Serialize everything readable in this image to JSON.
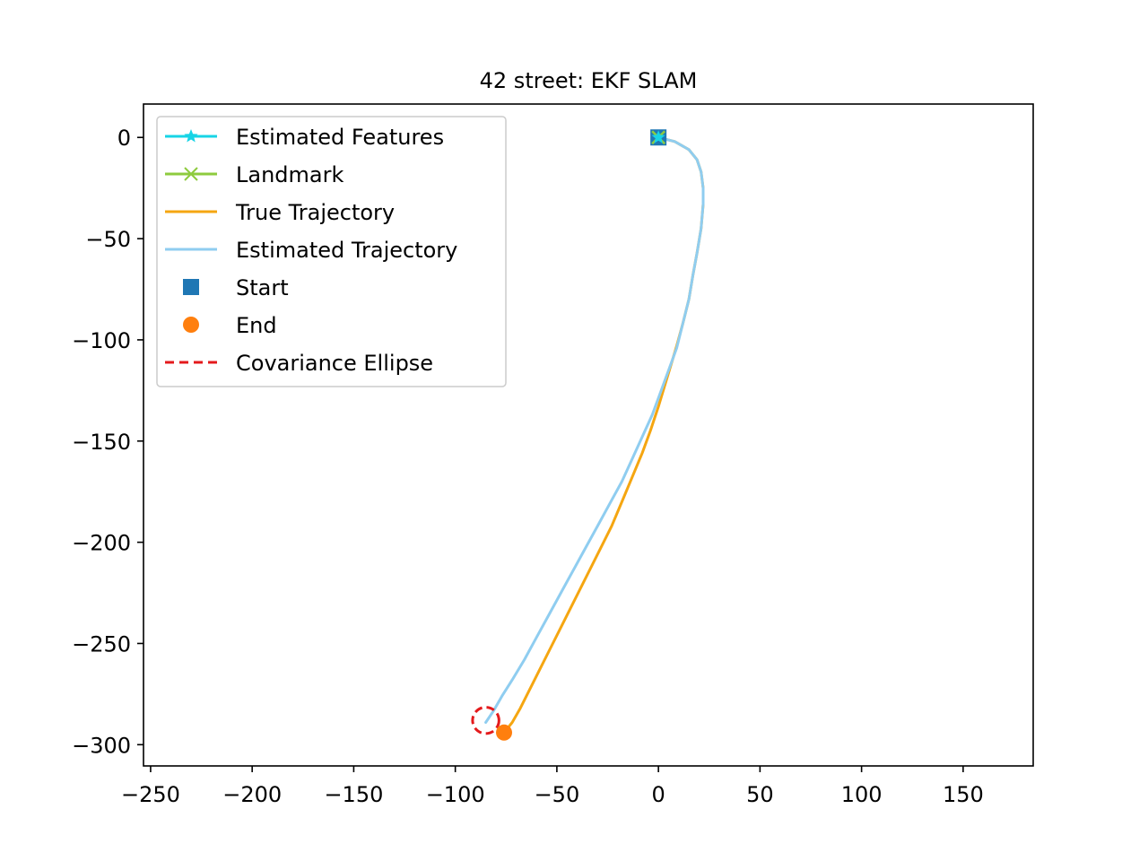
{
  "chart_data": {
    "type": "line",
    "title": "42 street: EKF SLAM",
    "xlabel": "",
    "ylabel": "",
    "xlim": [
      -253.5,
      184.5
    ],
    "ylim": [
      -310.5,
      16.5
    ],
    "x_ticks": [
      -250,
      -200,
      -150,
      -100,
      -50,
      0,
      50,
      100,
      150
    ],
    "x_tick_labels": [
      "−250",
      "−200",
      "−150",
      "−100",
      "−50",
      "0",
      "50",
      "100",
      "150"
    ],
    "y_ticks": [
      0,
      -50,
      -100,
      -150,
      -200,
      -250,
      -300
    ],
    "y_tick_labels": [
      "0",
      "−50",
      "−100",
      "−150",
      "−200",
      "−250",
      "−300"
    ],
    "grid": false,
    "legend_position": "upper-left",
    "legend": [
      {
        "label": "Estimated Features",
        "color": "#17d4e6",
        "style": "line-star"
      },
      {
        "label": "Landmark",
        "color": "#8ecb3e",
        "style": "line-x"
      },
      {
        "label": "True Trajectory",
        "color": "#f5a611",
        "style": "line"
      },
      {
        "label": "Estimated Trajectory",
        "color": "#8fcdf0",
        "style": "line"
      },
      {
        "label": "Start",
        "color": "#1f77b4",
        "style": "square"
      },
      {
        "label": "End",
        "color": "#ff7f0e",
        "style": "circle"
      },
      {
        "label": "Covariance Ellipse",
        "color": "#e41a1c",
        "style": "dashed"
      }
    ],
    "series": [
      {
        "name": "True Trajectory",
        "color": "#f5a611",
        "x": [
          0,
          8,
          15,
          19,
          21,
          22,
          22,
          21,
          19,
          17,
          15,
          12,
          9,
          6,
          3,
          0,
          -4,
          -8,
          -13,
          -18,
          -23,
          -29,
          -35,
          -41,
          -47,
          -53,
          -59,
          -64,
          -68,
          -72,
          -76
        ],
        "y": [
          0,
          -2,
          -6,
          -11,
          -17,
          -25,
          -33,
          -45,
          -57,
          -68,
          -80,
          -92,
          -103,
          -113,
          -123,
          -133,
          -145,
          -156,
          -168,
          -180,
          -192,
          -204,
          -216,
          -228,
          -240,
          -252,
          -264,
          -274,
          -282,
          -289,
          -294
        ]
      },
      {
        "name": "Estimated Trajectory",
        "color": "#8fcdf0",
        "x": [
          0,
          8,
          15,
          19,
          21,
          22,
          22,
          21,
          19,
          17,
          15,
          12,
          9,
          5,
          1,
          -3,
          -8,
          -13,
          -18,
          -24,
          -30,
          -36,
          -42,
          -48,
          -54,
          -60,
          -66,
          -72,
          -77,
          -81,
          -85
        ],
        "y": [
          0,
          -2,
          -6,
          -11,
          -17,
          -25,
          -33,
          -45,
          -57,
          -68,
          -80,
          -92,
          -104,
          -115,
          -126,
          -137,
          -148,
          -159,
          -170,
          -181,
          -192,
          -203,
          -214,
          -225,
          -236,
          -247,
          -258,
          -268,
          -276,
          -283,
          -289
        ]
      }
    ],
    "landmark": {
      "x": 0,
      "y": 0
    },
    "estimated_feature": {
      "x": 0,
      "y": 0
    },
    "start": {
      "x": 0,
      "y": 0
    },
    "end": {
      "x": -76,
      "y": -294
    },
    "covariance_ellipse": {
      "center_x": -85,
      "center_y": -288,
      "radius_x": 6.5,
      "radius_y": 6.5
    }
  }
}
